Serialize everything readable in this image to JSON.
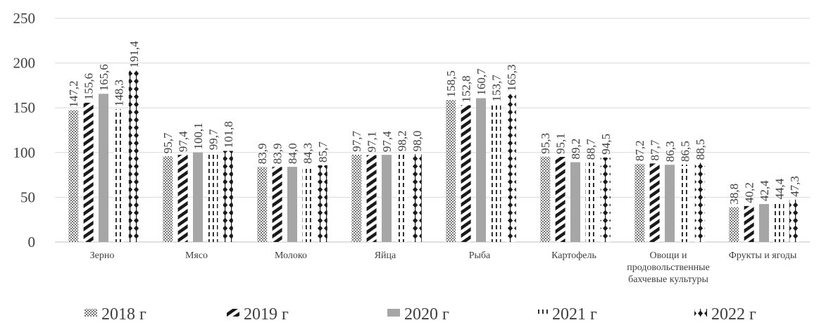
{
  "chart_data": {
    "type": "bar",
    "title": "",
    "xlabel": "",
    "ylabel": "",
    "ylim": [
      0,
      250
    ],
    "yticks": [
      0,
      50,
      100,
      150,
      200,
      250
    ],
    "grid": "horizontal",
    "legend_position": "bottom",
    "categories": [
      [
        "Зерно"
      ],
      [
        "Мясо"
      ],
      [
        "Молоко"
      ],
      [
        "Яйца"
      ],
      [
        "Рыба"
      ],
      [
        "Картофель"
      ],
      [
        "Овощи и",
        "продовольственные",
        "бахчевые культуры"
      ],
      [
        "Фрукты и ягоды"
      ]
    ],
    "series": [
      {
        "name": "2018 г",
        "pattern": "dots",
        "values": [
          147.2,
          95.7,
          83.9,
          97.7,
          158.5,
          95.3,
          87.2,
          38.8
        ],
        "labels": [
          "147,2",
          "95,7",
          "83,9",
          "97,7",
          "158,5",
          "95,3",
          "87,2",
          "38,8"
        ]
      },
      {
        "name": "2019 г",
        "pattern": "diagonal-stripes",
        "values": [
          155.6,
          97.4,
          83.9,
          97.1,
          152.8,
          95.1,
          87.7,
          40.2
        ],
        "labels": [
          "155,6",
          "97,4",
          "83,9",
          "97,1",
          "152,8",
          "95,1",
          "87,7",
          "40,2"
        ]
      },
      {
        "name": "2020 г",
        "pattern": "solid-gray",
        "values": [
          165.6,
          100.1,
          84.0,
          97.4,
          160.7,
          89.2,
          86.3,
          42.4
        ],
        "labels": [
          "165,6",
          "100,1",
          "84,0",
          "97,4",
          "160,7",
          "89,2",
          "86,3",
          "42,4"
        ]
      },
      {
        "name": "2021 г",
        "pattern": "dashed-vertical",
        "values": [
          148.3,
          99.7,
          84.3,
          98.2,
          153.7,
          88.7,
          86.5,
          44.4
        ],
        "labels": [
          "148,3",
          "99,7",
          "84,3",
          "98,2",
          "153,7",
          "88,7",
          "86,5",
          "44,4"
        ]
      },
      {
        "name": "2022 г",
        "pattern": "diamond-chain",
        "values": [
          191.4,
          101.8,
          85.7,
          98.0,
          165.3,
          94.5,
          88.5,
          47.3
        ],
        "labels": [
          "191,4",
          "101,8",
          "85,7",
          "98,0",
          "165,3",
          "94,5",
          "88,5",
          "47,3"
        ]
      }
    ],
    "colors": {
      "text": "#404040",
      "grid": "#d9d9d9",
      "bar_dark": "#1a1a1a",
      "bar_gray": "#a6a6a6"
    }
  }
}
